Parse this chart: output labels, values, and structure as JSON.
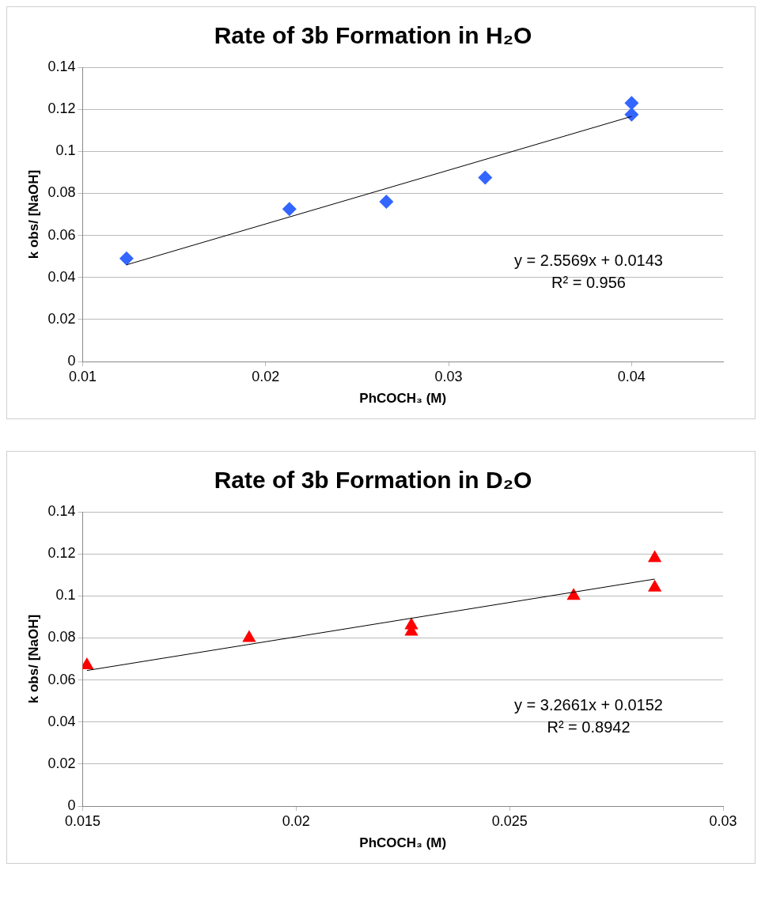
{
  "chart_data": [
    {
      "type": "scatter",
      "title": "Rate of 3b Formation in H₂O",
      "xlabel": "PhCOCH₃ (M)",
      "ylabel": "k obs/ [NaOH]",
      "xlim": [
        0.01,
        0.045
      ],
      "xticks": [
        0.01,
        0.02,
        0.03,
        0.04
      ],
      "ylim": [
        0,
        0.14
      ],
      "yticks": [
        0,
        0.02,
        0.04,
        0.06,
        0.08,
        0.1,
        0.12,
        0.14
      ],
      "grid": "y",
      "legend": false,
      "annotations": [
        "y = 2.5569x + 0.0143",
        "R² = 0.956"
      ],
      "series": [
        {
          "color": "#3366ff",
          "marker": "diamond",
          "x": [
            0.0124,
            0.0213,
            0.0266,
            0.032,
            0.04,
            0.04
          ],
          "values": [
            0.049,
            0.0725,
            0.076,
            0.0875,
            0.1175,
            0.123
          ]
        },
        {
          "type": "line",
          "color": "#000000",
          "marker": "none",
          "x": [
            0.0124,
            0.04
          ],
          "values": [
            0.046,
            0.1166
          ]
        }
      ]
    },
    {
      "type": "scatter",
      "title": "Rate of 3b Formation in D₂O",
      "xlabel": "PhCOCH₃ (M)",
      "ylabel": "k obs/ [NaOH]",
      "xlim": [
        0.015,
        0.03
      ],
      "xticks": [
        0.015,
        0.02,
        0.025,
        0.03
      ],
      "ylim": [
        0,
        0.14
      ],
      "yticks": [
        0,
        0.02,
        0.04,
        0.06,
        0.08,
        0.1,
        0.12,
        0.14
      ],
      "grid": "y",
      "legend": false,
      "annotations": [
        "y = 3.2661x + 0.0152",
        "R² = 0.8942"
      ],
      "series": [
        {
          "color": "#ff0000",
          "marker": "triangle",
          "x": [
            0.0151,
            0.0189,
            0.0227,
            0.0227,
            0.0265,
            0.0284,
            0.0284
          ],
          "values": [
            0.067,
            0.08,
            0.083,
            0.086,
            0.1,
            0.118,
            0.104
          ]
        },
        {
          "type": "line",
          "color": "#000000",
          "marker": "none",
          "x": [
            0.0151,
            0.0284
          ],
          "values": [
            0.0645,
            0.108
          ]
        }
      ]
    }
  ]
}
